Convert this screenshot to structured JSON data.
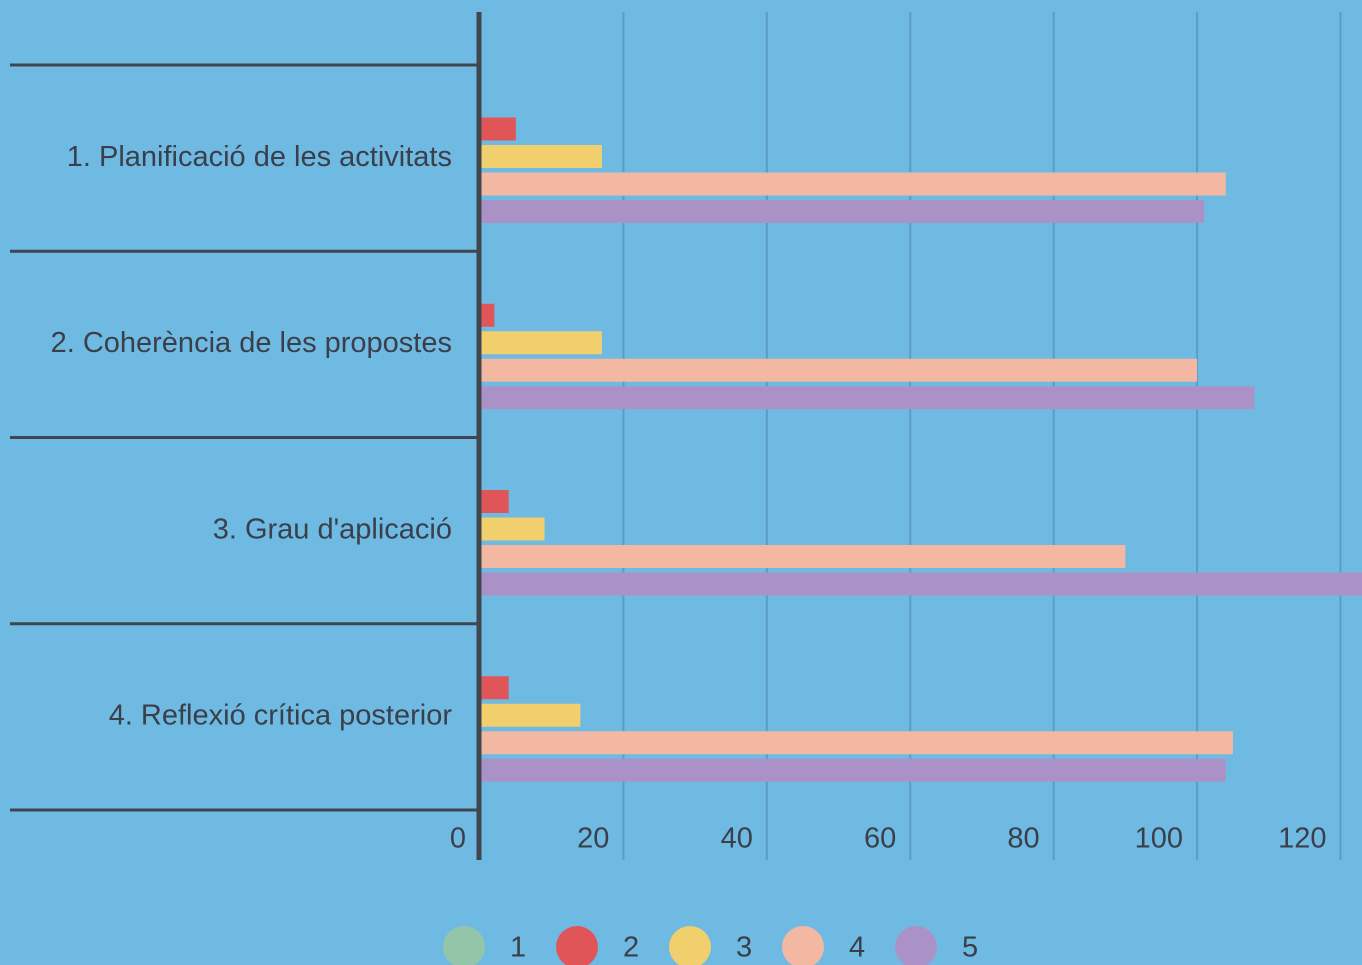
{
  "chart_data": {
    "type": "hbar",
    "categories": [
      "1. Planificació de les activitats",
      "2. Coherència de les propostes",
      "3. Grau d'aplicació",
      "4. Reflexió crítica posterior"
    ],
    "series": [
      {
        "name": "1",
        "color": "#93c5a8",
        "values": [
          0,
          0,
          0,
          0
        ]
      },
      {
        "name": "2",
        "color": "#e05558",
        "values": [
          5,
          2,
          4,
          4
        ]
      },
      {
        "name": "3",
        "color": "#f0cf6c",
        "values": [
          17,
          17,
          9,
          14
        ]
      },
      {
        "name": "4",
        "color": "#f2b8a2",
        "values": [
          104,
          100,
          90,
          105
        ]
      },
      {
        "name": "5",
        "color": "#ab92c6",
        "values": [
          101,
          108,
          124,
          104
        ]
      }
    ],
    "xlim": [
      0,
      123
    ],
    "xticks": [
      0,
      20,
      40,
      60,
      80,
      100,
      120
    ],
    "grid": true,
    "legend": "bottom"
  }
}
